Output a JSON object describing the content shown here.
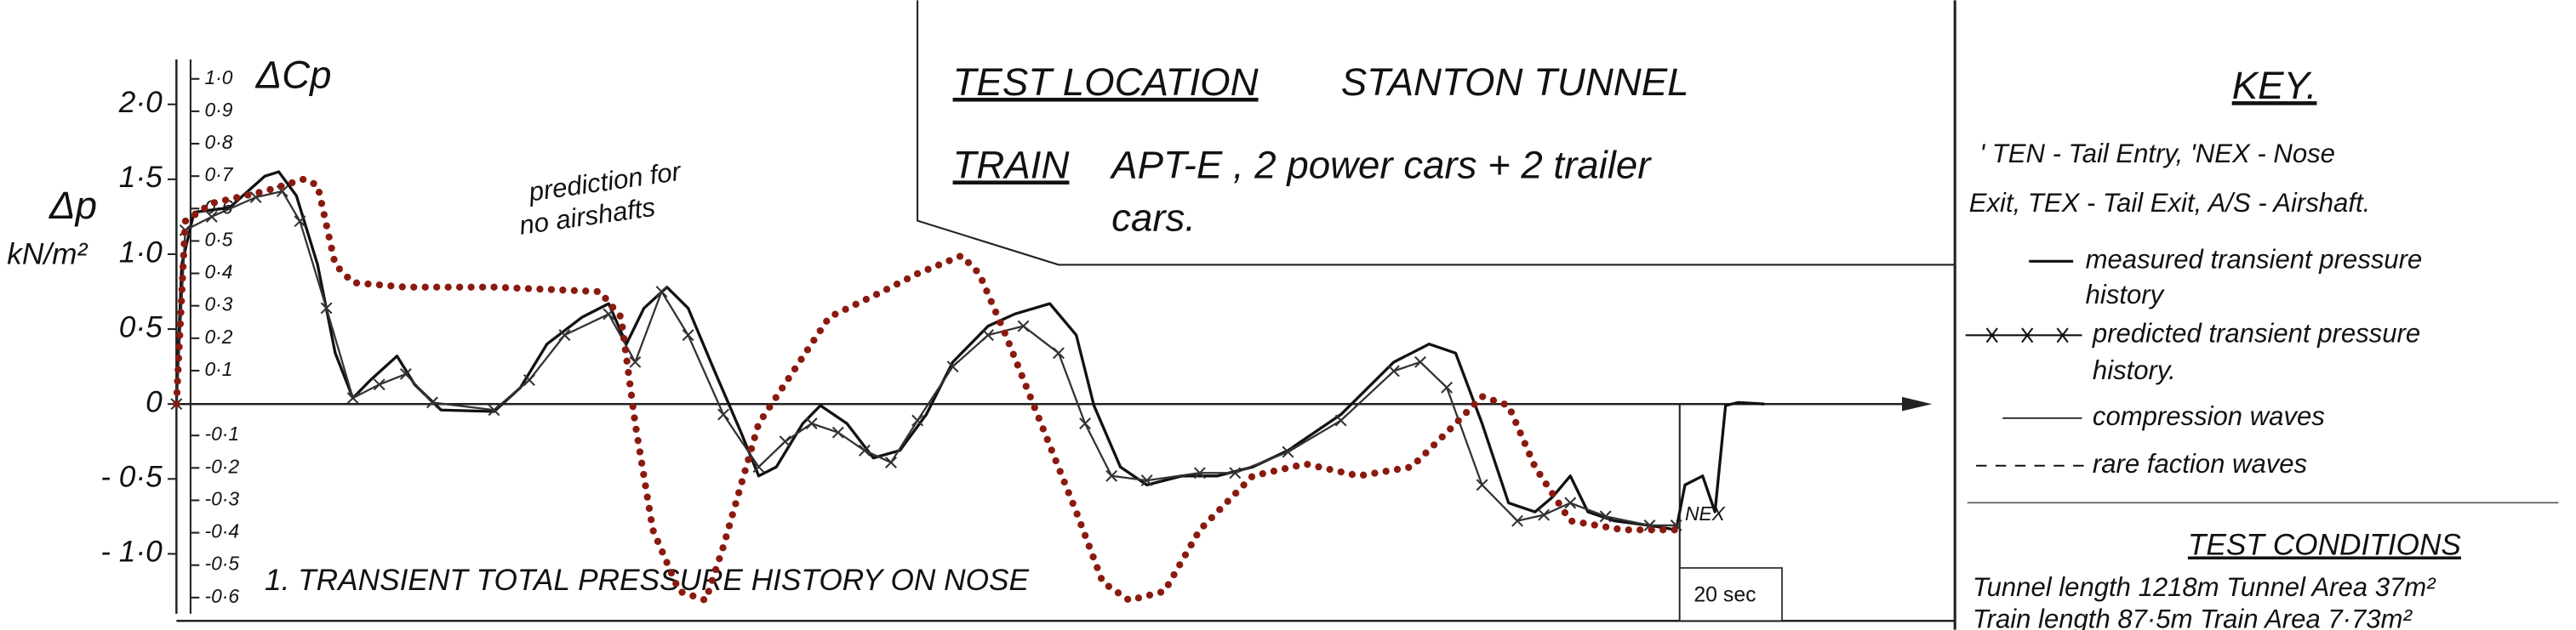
{
  "chart_data": {
    "type": "line",
    "y_label": [
      "Δp",
      "kN/m²"
    ],
    "y2_label": "ΔCp",
    "xlim": [
      0,
      50
    ],
    "ylim": [
      -1.4,
      2.3
    ],
    "yticks": [
      {
        "value": 2.0,
        "label": "2·0"
      },
      {
        "value": 1.5,
        "label": "1·5"
      },
      {
        "value": 1.0,
        "label": "1·0"
      },
      {
        "value": 0.5,
        "label": "0·5"
      },
      0,
      {
        "value": -0.5,
        "label": "- 0·5"
      },
      {
        "value": -1.0,
        "label": "- 1·0"
      }
    ],
    "y2lim": [
      -0.65,
      1.06
    ],
    "y2ticks": [
      {
        "value": 1.0,
        "label": "1·0"
      },
      {
        "value": 0.9,
        "label": "0·9"
      },
      {
        "value": 0.8,
        "label": "0·8"
      },
      {
        "value": 0.7,
        "label": "0·7"
      },
      {
        "value": 0.6,
        "label": "0·6"
      },
      {
        "value": 0.5,
        "label": "0·5"
      },
      {
        "value": 0.4,
        "label": "0·4"
      },
      {
        "value": 0.3,
        "label": "0·3"
      },
      {
        "value": 0.2,
        "label": "0·2"
      },
      {
        "value": 0.1,
        "label": "0·1"
      },
      {
        "value": -0.1,
        "label": "-0·1"
      },
      {
        "value": -0.2,
        "label": "-0·2"
      },
      {
        "value": -0.3,
        "label": "-0·3"
      },
      {
        "value": -0.4,
        "label": "-0·4"
      },
      {
        "value": -0.5,
        "label": "-0·5"
      },
      {
        "value": -0.6,
        "label": "-0·6"
      }
    ],
    "series": [
      {
        "color": "#111111",
        "linestyle": "solid",
        "x": [
          0,
          0.15,
          0.5,
          1.5,
          2.5,
          2.9,
          3.4,
          4,
          4.5,
          5,
          5.5,
          6.25,
          6.75,
          7.5,
          9,
          9.75,
          10.5,
          11.5,
          12.25,
          12.75,
          13.25,
          13.9,
          14.5,
          15.25,
          16,
          16.5,
          17,
          17.75,
          18.25,
          19,
          19.75,
          20.5,
          21.25,
          22,
          23,
          23.75,
          24.75,
          25.5,
          26,
          26.75,
          27.5,
          28.5,
          29.5,
          30.5,
          31.5,
          33,
          34.5,
          35.5,
          36.25,
          37,
          37.75,
          38.5,
          39,
          39.5,
          40,
          40.75,
          41.75,
          42.5,
          42.75,
          43.25,
          43.6,
          43.9,
          44.25,
          45
        ],
        "values": [
          0,
          0.93,
          1.28,
          1.31,
          1.52,
          1.55,
          1.39,
          0.93,
          0.34,
          0.04,
          0.16,
          0.32,
          0.13,
          -0.04,
          -0.05,
          0.11,
          0.4,
          0.58,
          0.67,
          0.4,
          0.64,
          0.78,
          0.64,
          0.22,
          -0.19,
          -0.48,
          -0.42,
          -0.13,
          -0.01,
          -0.13,
          -0.36,
          -0.31,
          -0.07,
          0.28,
          0.52,
          0.6,
          0.67,
          0.46,
          -0.01,
          -0.42,
          -0.54,
          -0.48,
          -0.48,
          -0.42,
          -0.31,
          -0.07,
          0.28,
          0.4,
          0.34,
          -0.13,
          -0.66,
          -0.72,
          -0.62,
          -0.48,
          -0.72,
          -0.78,
          -0.81,
          -0.84,
          -0.54,
          -0.48,
          -0.72,
          -0.01,
          0.01,
          0
        ]
      },
      {
        "color": "#333333",
        "linestyle": "solid",
        "marker": "x",
        "x": [
          0,
          0.25,
          1,
          2.25,
          3,
          3.5,
          4.25,
          5,
          5.75,
          6.5,
          7.25,
          9,
          10,
          11,
          12.25,
          13,
          13.75,
          14.5,
          15.5,
          16.5,
          17.25,
          18,
          18.75,
          19.5,
          20.25,
          21,
          22,
          23,
          24,
          25,
          25.75,
          26.5,
          27.5,
          29,
          30,
          31.5,
          33,
          34.5,
          35.25,
          36,
          37,
          38,
          38.75,
          39.5,
          40.5,
          41.75,
          42.5
        ],
        "values": [
          0,
          1.16,
          1.25,
          1.38,
          1.42,
          1.22,
          0.64,
          0.04,
          0.13,
          0.2,
          0.01,
          -0.04,
          0.16,
          0.46,
          0.6,
          0.28,
          0.75,
          0.46,
          -0.07,
          -0.42,
          -0.25,
          -0.13,
          -0.19,
          -0.31,
          -0.39,
          -0.11,
          0.25,
          0.46,
          0.52,
          0.34,
          -0.13,
          -0.48,
          -0.51,
          -0.46,
          -0.46,
          -0.32,
          -0.11,
          0.22,
          0.28,
          0.11,
          -0.54,
          -0.78,
          -0.74,
          -0.66,
          -0.75,
          -0.81,
          -0.81
        ]
      },
      {
        "color": "#8a1a10",
        "linestyle": "dotted",
        "x": [
          0,
          0.25,
          1,
          2.5,
          3.6,
          4,
          4.5,
          5,
          6.5,
          9,
          12,
          12.6,
          13,
          13.5,
          14.25,
          15,
          15.5,
          16.5,
          18.5,
          20,
          21,
          22.25,
          22.75,
          23.5,
          24.5,
          25.5,
          26.25,
          27,
          28,
          29,
          30.5,
          32,
          33.5,
          35,
          36,
          37,
          37.75,
          38.5,
          39.5,
          41,
          42.5
        ],
        "values": [
          0,
          1.22,
          1.34,
          1.42,
          1.5,
          1.46,
          0.93,
          0.81,
          0.78,
          0.78,
          0.75,
          0.58,
          -0.13,
          -0.84,
          -1.25,
          -1.31,
          -0.95,
          -0.13,
          0.58,
          0.75,
          0.87,
          0.99,
          0.87,
          0.46,
          -0.13,
          -0.72,
          -1.19,
          -1.31,
          -1.25,
          -0.84,
          -0.48,
          -0.4,
          -0.48,
          -0.42,
          -0.19,
          0.05,
          -0.01,
          -0.42,
          -0.78,
          -0.84,
          -0.84
        ]
      }
    ],
    "annotations": {
      "no_airshafts": [
        "prediction for",
        "no airshafts"
      ],
      "nex": "NEX",
      "scale": "20 sec",
      "caption": "1.    TRANSIENT    TOTAL   PRESSURE   HISTORY    ON    NOSE"
    },
    "test": {
      "location_label": "TEST LOCATION",
      "location": "STANTON TUNNEL",
      "train_label": "TRAIN",
      "train": [
        "APT-E , 2 power cars + 2 trailer",
        "cars."
      ]
    },
    "key": {
      "title": "KEY.",
      "abbreviations": [
        "' TEN - Tail Entry,  'NEX - Nose",
        "Exit,  TEX - Tail Exit,  A/S - Airshaft."
      ],
      "measured": [
        "measured transient pressure",
        "history"
      ],
      "predicted": [
        "predicted transient pressure",
        "history."
      ],
      "compression": "compression waves",
      "rarefaction": "rare faction waves",
      "conditions_title": "TEST CONDITIONS",
      "conditions": [
        "Tunnel length  1218m   Tunnel Area 37m²",
        "Train length  87·5m   Train Area 7·73m²"
      ]
    }
  }
}
